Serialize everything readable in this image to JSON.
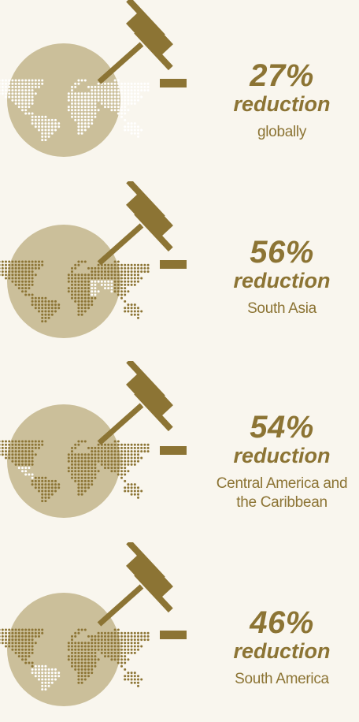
{
  "colors": {
    "background": "#f9f6ee",
    "accent": "#8c7434",
    "circle": "#cbbf9a",
    "highlight": "#ffffff"
  },
  "stats": [
    {
      "percent": "27%",
      "label": "reduction",
      "region": "globally",
      "highlighted_region": "world"
    },
    {
      "percent": "56%",
      "label": "reduction",
      "region": "South Asia",
      "highlighted_region": "south-asia"
    },
    {
      "percent": "54%",
      "label": "reduction",
      "region": "Central America and the Caribbean",
      "highlighted_region": "central-america"
    },
    {
      "percent": "46%",
      "label": "reduction",
      "region": "South America",
      "highlighted_region": "south-america"
    }
  ],
  "icons": [
    "gavel-icon",
    "world-map-icon"
  ]
}
